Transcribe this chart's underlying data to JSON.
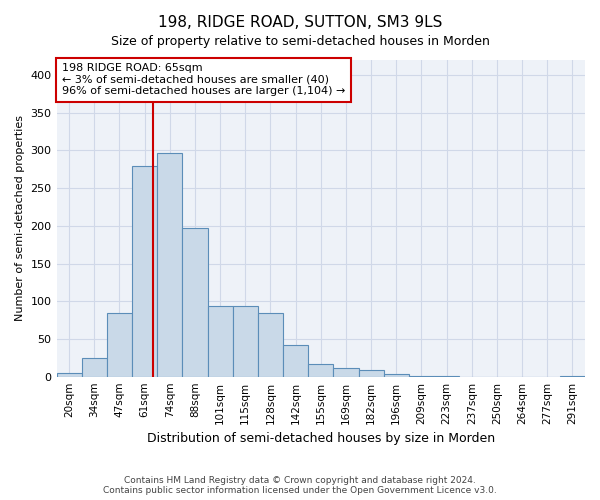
{
  "title": "198, RIDGE ROAD, SUTTON, SM3 9LS",
  "subtitle": "Size of property relative to semi-detached houses in Morden",
  "xlabel": "Distribution of semi-detached houses by size in Morden",
  "ylabel": "Number of semi-detached properties",
  "footnote1": "Contains HM Land Registry data © Crown copyright and database right 2024.",
  "footnote2": "Contains public sector information licensed under the Open Government Licence v3.0.",
  "annotation_title": "198 RIDGE ROAD: 65sqm",
  "annotation_line1": "← 3% of semi-detached houses are smaller (40)",
  "annotation_line2": "96% of semi-detached houses are larger (1,104) →",
  "bar_color": "#c9d9e8",
  "bar_edge_color": "#5b8db8",
  "vline_color": "#cc0000",
  "annotation_box_color": "#cc0000",
  "grid_color": "#d0d8e8",
  "background_color": "#eef2f8",
  "ylim": [
    0,
    420
  ],
  "yticks": [
    0,
    50,
    100,
    150,
    200,
    250,
    300,
    350,
    400
  ],
  "categories": [
    "20sqm",
    "34sqm",
    "47sqm",
    "61sqm",
    "74sqm",
    "88sqm",
    "101sqm",
    "115sqm",
    "128sqm",
    "142sqm",
    "155sqm",
    "169sqm",
    "182sqm",
    "196sqm",
    "209sqm",
    "223sqm",
    "237sqm",
    "250sqm",
    "264sqm",
    "277sqm",
    "291sqm"
  ],
  "values": [
    5,
    25,
    84,
    280,
    297,
    197,
    94,
    94,
    84,
    42,
    17,
    12,
    9,
    3,
    1,
    1,
    0,
    0,
    0,
    0,
    1
  ],
  "vline_position": 3.35
}
